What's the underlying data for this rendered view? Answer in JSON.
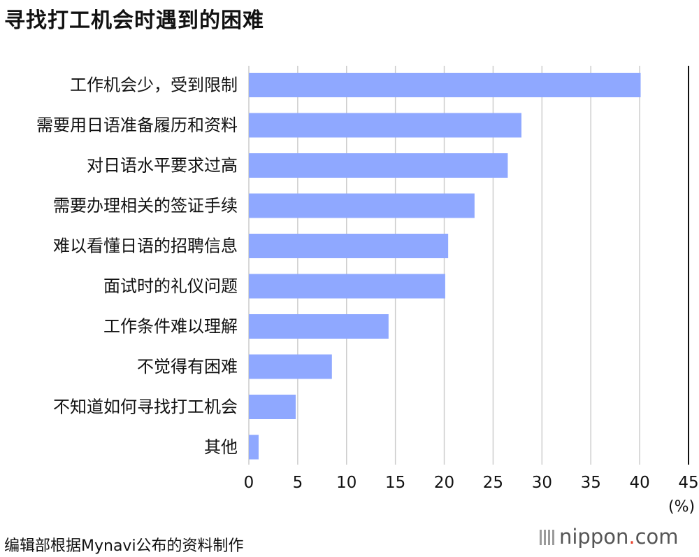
{
  "title": "寻找打工机会时遇到的困难",
  "unit_label": "(%)",
  "source": "编辑部根据Mynavi公布的资料制作",
  "brand": {
    "name_prefix": "nippon",
    "name_dot": ".",
    "name_suffix": "com",
    "dot_color": "#e8402a"
  },
  "chart_data": {
    "type": "bar",
    "orientation": "horizontal",
    "title": "寻找打工机会时遇到的困难",
    "xlabel": "(%)",
    "ylabel": "",
    "xlim": [
      0,
      45
    ],
    "xticks": [
      0,
      5,
      10,
      15,
      20,
      25,
      30,
      35,
      40,
      45
    ],
    "grid": true,
    "bar_color": "#8fa8ff",
    "categories": [
      "工作机会少，受到限制",
      "需要用日语准备履历和资料",
      "对日语水平要求过高",
      "需要办理相关的签证手续",
      "难以看懂日语的招聘信息",
      "面试时的礼仪问题",
      "工作条件难以理解",
      "不觉得有困难",
      "不知道如何寻找打工机会",
      "其他"
    ],
    "values": [
      40.1,
      27.9,
      26.5,
      23.1,
      20.4,
      20.1,
      14.3,
      8.5,
      4.8,
      1.0
    ]
  }
}
